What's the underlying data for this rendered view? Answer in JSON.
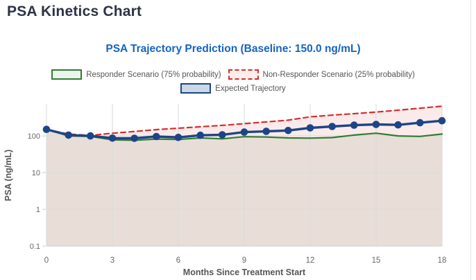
{
  "page": {
    "title": "PSA Kinetics Chart"
  },
  "chart": {
    "subtitle": "PSA Trajectory Prediction (Baseline: 150.0 ng/mL)",
    "legend": [
      {
        "label": "Responder Scenario (75% probability)",
        "swatch_fill": "#edf4ed",
        "swatch_border": "#2e7d32",
        "border_style": "solid"
      },
      {
        "label": "Non-Responder Scenario (25% probability)",
        "swatch_fill": "#fdeded",
        "swatch_border": "#d32f2f",
        "border_style": "dashed"
      },
      {
        "label": "Expected Trajectory",
        "swatch_fill": "#ccd8e6",
        "swatch_border": "#1c4587",
        "border_style": "solid"
      }
    ]
  },
  "colors": {
    "title": "#2c3345",
    "subtitle": "#1565c0",
    "legend_text": "#555555",
    "axis_tick_text": "#666666",
    "axis_title_text": "#555555",
    "grid": "#d9d9d9",
    "axis_line": "#cccccc"
  },
  "chart_data": {
    "type": "line",
    "title": "PSA Trajectory Prediction (Baseline: 150.0 ng/mL)",
    "xlabel": "Months Since Treatment Start",
    "ylabel": "PSA (ng/mL)",
    "yscale": "log",
    "xlim": [
      0,
      18
    ],
    "ylim": [
      0.1,
      740
    ],
    "xticks": [
      0,
      3,
      6,
      9,
      12,
      15,
      18
    ],
    "yticks": [
      0.1,
      1,
      10,
      100
    ],
    "grid": true,
    "legend_position": "top",
    "x": [
      0,
      1,
      2,
      3,
      4,
      5,
      6,
      7,
      8,
      9,
      10,
      11,
      12,
      13,
      14,
      15,
      16,
      17,
      18
    ],
    "series": [
      {
        "name": "Responder Scenario (75% probability)",
        "color": "#2e7d32",
        "fill_color": "rgba(46,125,50,0.10)",
        "style": "solid",
        "line_width": 2.2,
        "markers": false,
        "fill_to_bottom": true,
        "values": [
          150,
          100,
          97,
          78,
          76,
          82,
          80,
          88,
          83,
          95,
          93,
          88,
          87,
          90,
          105,
          118,
          100,
          97,
          112
        ]
      },
      {
        "name": "Non-Responder Scenario (25% probability)",
        "color": "#d32f2f",
        "fill_color": "rgba(211,47,47,0.10)",
        "style": "dashed",
        "line_width": 2.2,
        "markers": false,
        "fill_to_bottom": true,
        "values": [
          150,
          112,
          103,
          118,
          132,
          148,
          162,
          177,
          193,
          215,
          240,
          268,
          330,
          368,
          402,
          445,
          500,
          568,
          645
        ]
      },
      {
        "name": "Expected Trajectory",
        "color": "#1c4587",
        "style": "solid",
        "line_width": 3.4,
        "markers": true,
        "marker_radius": 5.3,
        "fill_to_bottom": false,
        "values": [
          150,
          105,
          100,
          87,
          86,
          96,
          91,
          104,
          107,
          127,
          133,
          140,
          165,
          180,
          196,
          205,
          199,
          228,
          258
        ]
      }
    ]
  }
}
